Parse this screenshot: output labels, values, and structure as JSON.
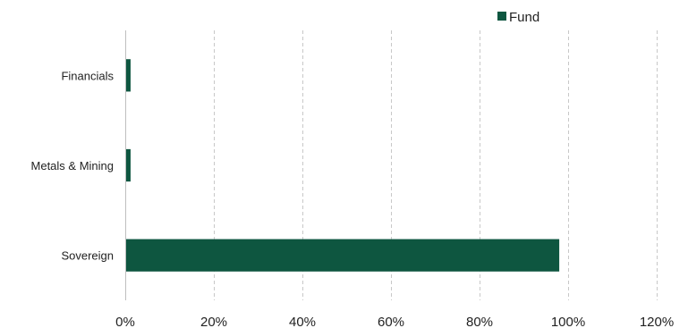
{
  "chart_data": {
    "type": "bar",
    "orientation": "horizontal",
    "categories": [
      "Financials",
      "Metals & Mining",
      "Sovereign"
    ],
    "series": [
      {
        "name": "Fund",
        "color": "#0e5640",
        "values": [
          1.2,
          1.2,
          98.0
        ]
      }
    ],
    "xlim": [
      0,
      120
    ],
    "xticks": [
      0,
      20,
      40,
      60,
      80,
      100,
      120
    ],
    "tick_format": "{v}%",
    "grid": "vertical-dashed",
    "legend_position": "top-right"
  }
}
